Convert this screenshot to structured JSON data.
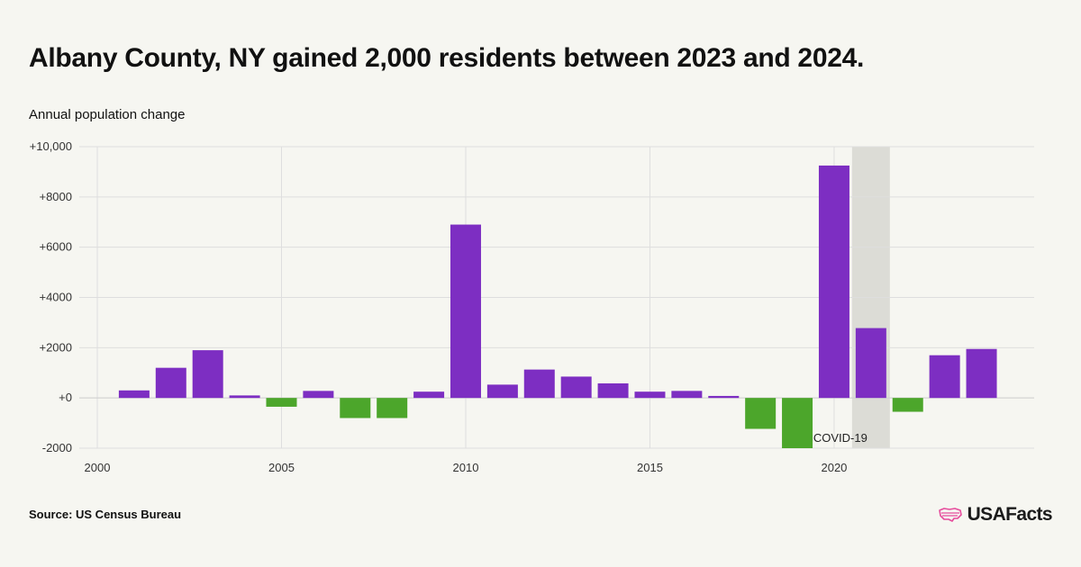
{
  "title": "Albany County, NY gained 2,000 residents between 2023 and 2024.",
  "source": "Source: US Census Bureau",
  "brand": "USAFacts",
  "colors": {
    "increase": "#7d2ec2",
    "decrease": "#4ca62b",
    "covid_band": "#dcdcd6",
    "background": "#f6f6f1",
    "brand_mark": "#e64c9c"
  },
  "chart_data": {
    "type": "bar",
    "title": "Albany County, NY gained 2,000 residents between 2023 and 2024.",
    "ylabel": "Annual population change",
    "xlabel": "",
    "ylim": [
      -2000,
      10000
    ],
    "yticks": [
      -2000,
      0,
      2000,
      4000,
      6000,
      8000,
      10000
    ],
    "ytick_labels": [
      "-2000",
      "+0",
      "+2000",
      "+4000",
      "+6000",
      "+8000",
      "+10,000"
    ],
    "xlim": [
      2000,
      2024.5
    ],
    "xticks": [
      2000,
      2005,
      2010,
      2015,
      2020
    ],
    "xtick_labels": [
      "2000",
      "2005",
      "2010",
      "2015",
      "2020"
    ],
    "grid": true,
    "categories": [
      2001,
      2002,
      2003,
      2004,
      2005,
      2006,
      2007,
      2008,
      2009,
      2010,
      2011,
      2012,
      2013,
      2014,
      2015,
      2016,
      2017,
      2018,
      2019,
      2020,
      2021,
      2022,
      2023,
      2024
    ],
    "values": [
      300,
      1200,
      1900,
      100,
      -350,
      280,
      -800,
      -800,
      250,
      6900,
      530,
      1130,
      850,
      580,
      250,
      280,
      80,
      -1230,
      -2000,
      9250,
      2780,
      -550,
      1700,
      1950
    ],
    "annotations": [
      {
        "text": "COVID-19",
        "year": 2021,
        "shaded": true
      }
    ]
  }
}
